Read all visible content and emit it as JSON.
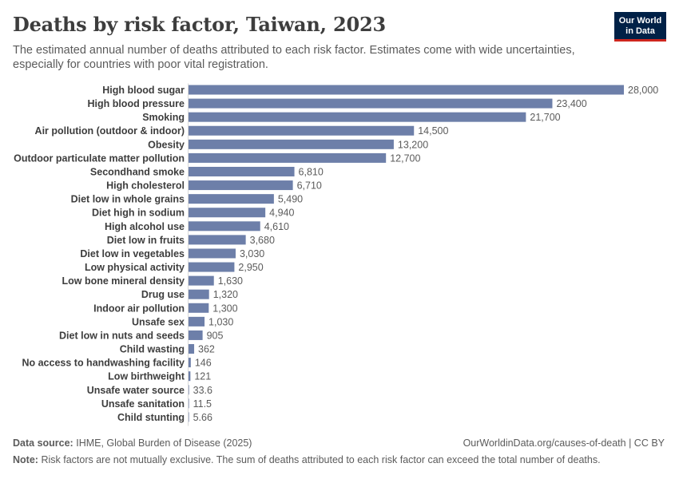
{
  "header": {
    "title": "Deaths by risk factor, Taiwan, 2023",
    "subtitle": "The estimated annual number of deaths attributed to each risk factor. Estimates come with wide uncertainties, especially for countries with poor vital registration.",
    "logo_line1": "Our World",
    "logo_line2": "in Data"
  },
  "footer": {
    "source_label": "Data source:",
    "source_text": "IHME, Global Burden of Disease (2025)",
    "link_text": "OurWorldinData.org/causes-of-death | CC BY",
    "note_label": "Note:",
    "note_text": "Risk factors are not mutually exclusive. The sum of deaths attributed to each risk factor can exceed the total number of deaths."
  },
  "colors": {
    "bar": "#6d7fa9",
    "label": "#3d3d3d",
    "value": "#5b5b5b",
    "logo_bg": "#002147",
    "logo_accent": "#ce261e"
  },
  "chart_data": {
    "type": "bar",
    "orientation": "horizontal",
    "categories": [
      "High blood sugar",
      "High blood pressure",
      "Smoking",
      "Air pollution (outdoor & indoor)",
      "Obesity",
      "Outdoor particulate matter pollution",
      "Secondhand smoke",
      "High cholesterol",
      "Diet low in whole grains",
      "Diet high in sodium",
      "High alcohol use",
      "Diet low in fruits",
      "Diet low in vegetables",
      "Low physical activity",
      "Low bone mineral density",
      "Drug use",
      "Indoor air pollution",
      "Unsafe sex",
      "Diet low in nuts and seeds",
      "Child wasting",
      "No access to handwashing facility",
      "Low birthweight",
      "Unsafe water source",
      "Unsafe sanitation",
      "Child stunting"
    ],
    "values": [
      28000,
      23400,
      21700,
      14500,
      13200,
      12700,
      6810,
      6710,
      5490,
      4940,
      4610,
      3680,
      3030,
      2950,
      1630,
      1320,
      1300,
      1030,
      905,
      362,
      146,
      121,
      33.6,
      11.5,
      5.66
    ],
    "value_labels": [
      "28,000",
      "23,400",
      "21,700",
      "14,500",
      "13,200",
      "12,700",
      "6,810",
      "6,710",
      "5,490",
      "4,940",
      "4,610",
      "3,680",
      "3,030",
      "2,950",
      "1,630",
      "1,320",
      "1,300",
      "1,030",
      "905",
      "362",
      "146",
      "121",
      "33.6",
      "11.5",
      "5.66"
    ],
    "xlim": [
      0,
      28000
    ],
    "grid": false,
    "legend": "none"
  }
}
